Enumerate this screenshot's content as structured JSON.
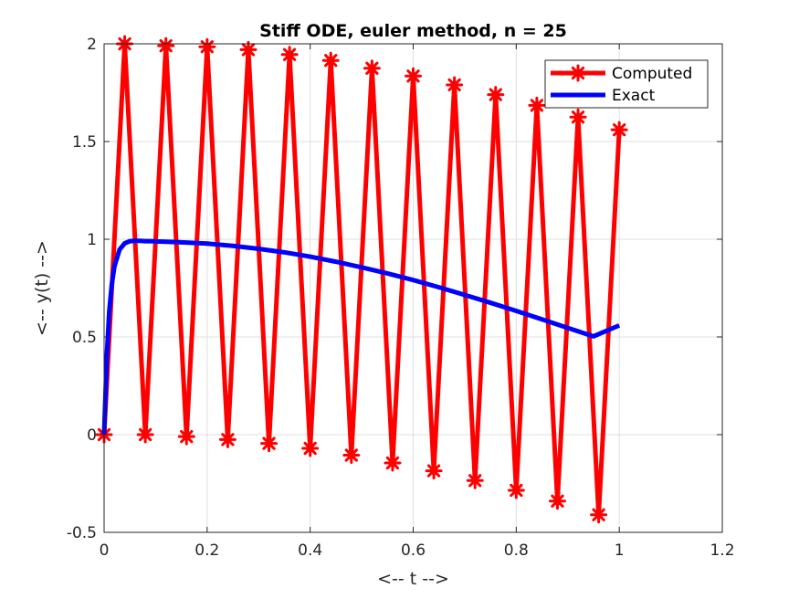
{
  "chart_data": {
    "type": "line",
    "title": "Stiff ODE, euler method, n = 25",
    "xlabel": "<-- t -->",
    "ylabel": "<-- y(t) -->",
    "xlim": [
      0,
      1.2
    ],
    "ylim": [
      -0.5,
      2
    ],
    "xticks": [
      0,
      0.2,
      0.4,
      0.6,
      0.8,
      1,
      1.2
    ],
    "xtick_labels": [
      "0",
      "0.2",
      "0.4",
      "0.6",
      "0.8",
      "1",
      "1.2"
    ],
    "yticks": [
      -0.5,
      0,
      0.5,
      1,
      1.5,
      2
    ],
    "ytick_labels": [
      "-0.5",
      "0",
      "0.5",
      "1",
      "1.5",
      "2"
    ],
    "grid": true,
    "legend_position": "top-right",
    "series": [
      {
        "name": "Computed",
        "color": "#ff0000",
        "marker": "asterisk",
        "x": [
          0,
          0.04,
          0.08,
          0.12,
          0.16,
          0.2,
          0.24,
          0.28,
          0.32,
          0.36,
          0.4,
          0.44,
          0.48,
          0.52,
          0.56,
          0.6,
          0.64,
          0.68,
          0.72,
          0.76,
          0.8,
          0.84,
          0.88,
          0.92,
          0.96,
          1.0
        ],
        "y": [
          0,
          2.0,
          0.0,
          1.99,
          -0.01,
          1.985,
          -0.025,
          1.97,
          -0.045,
          1.945,
          -0.07,
          1.915,
          -0.105,
          1.875,
          -0.145,
          1.835,
          -0.185,
          1.79,
          -0.235,
          1.74,
          -0.285,
          1.685,
          -0.34,
          1.625,
          -0.41,
          1.56
        ]
      },
      {
        "name": "Exact",
        "color": "#0000ff",
        "marker": "none",
        "x": [
          0,
          0.005,
          0.01,
          0.015,
          0.02,
          0.03,
          0.04,
          0.05,
          0.06,
          0.07,
          0.08,
          0.09,
          0.1,
          0.12,
          0.15,
          0.2,
          0.25,
          0.3,
          0.35,
          0.4,
          0.45,
          0.5,
          0.55,
          0.6,
          0.65,
          0.7,
          0.75,
          0.8,
          0.85,
          0.9,
          0.95,
          1.0
        ],
        "y": [
          0,
          0.39,
          0.63,
          0.77,
          0.86,
          0.947,
          0.979,
          0.99,
          0.992,
          0.992,
          0.99,
          0.99,
          0.989,
          0.987,
          0.984,
          0.978,
          0.966,
          0.951,
          0.933,
          0.911,
          0.885,
          0.856,
          0.825,
          0.791,
          0.754,
          0.715,
          0.675,
          0.633,
          0.59,
          0.546,
          0.503,
          0.559
        ]
      }
    ]
  }
}
